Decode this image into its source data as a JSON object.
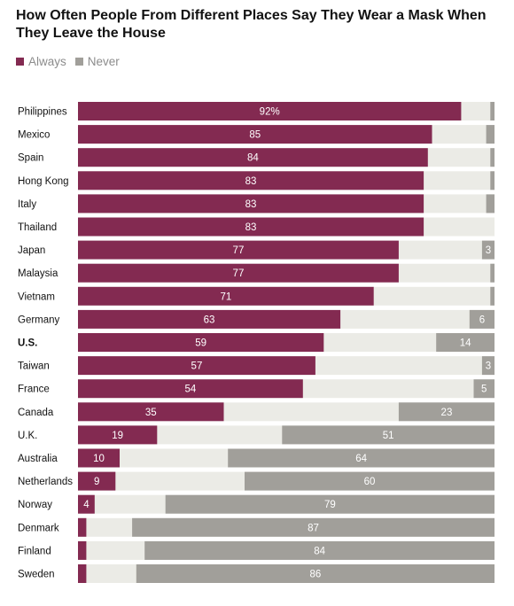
{
  "title": "How Often People From Different Places Say They Wear a Mask When They Leave the House",
  "legend": {
    "always": "Always",
    "never": "Never"
  },
  "colors": {
    "always": "#832a51",
    "never": "#a19f9a",
    "middle": "#ebebe6"
  },
  "chart_data": {
    "type": "bar",
    "orientation": "horizontal",
    "stacked": true,
    "percent_scale": [
      0,
      100
    ],
    "title": "How Often People From Different Places Say They Wear a Mask When They Leave the House",
    "legend_position": "top-left",
    "categories": [
      "Philippines",
      "Mexico",
      "Spain",
      "Hong Kong",
      "Italy",
      "Thailand",
      "Japan",
      "Malaysia",
      "Vietnam",
      "Germany",
      "U.S.",
      "Taiwan",
      "France",
      "Canada",
      "U.K.",
      "Australia",
      "Netherlands",
      "Norway",
      "Denmark",
      "Finland",
      "Sweden"
    ],
    "highlight_category": "U.S.",
    "series": [
      {
        "name": "Always",
        "values": [
          92,
          85,
          84,
          83,
          83,
          83,
          77,
          77,
          71,
          63,
          59,
          57,
          54,
          35,
          19,
          10,
          9,
          4,
          2,
          2,
          2
        ],
        "labels": [
          "92%",
          "85",
          "84",
          "83",
          "83",
          "83",
          "77",
          "77",
          "71",
          "63",
          "59",
          "57",
          "54",
          "35",
          "19",
          "10",
          "9",
          "4",
          "",
          "",
          ""
        ]
      },
      {
        "name": "Never",
        "values": [
          1,
          2,
          1,
          1,
          2,
          0,
          3,
          1,
          1,
          6,
          14,
          3,
          5,
          23,
          51,
          64,
          60,
          79,
          87,
          84,
          86
        ],
        "labels": [
          "",
          "",
          "",
          "",
          "",
          "",
          "3",
          "",
          "",
          "6",
          "14",
          "3",
          "5",
          "23",
          "51",
          "64",
          "60",
          "79",
          "87",
          "84",
          "86"
        ]
      }
    ]
  }
}
